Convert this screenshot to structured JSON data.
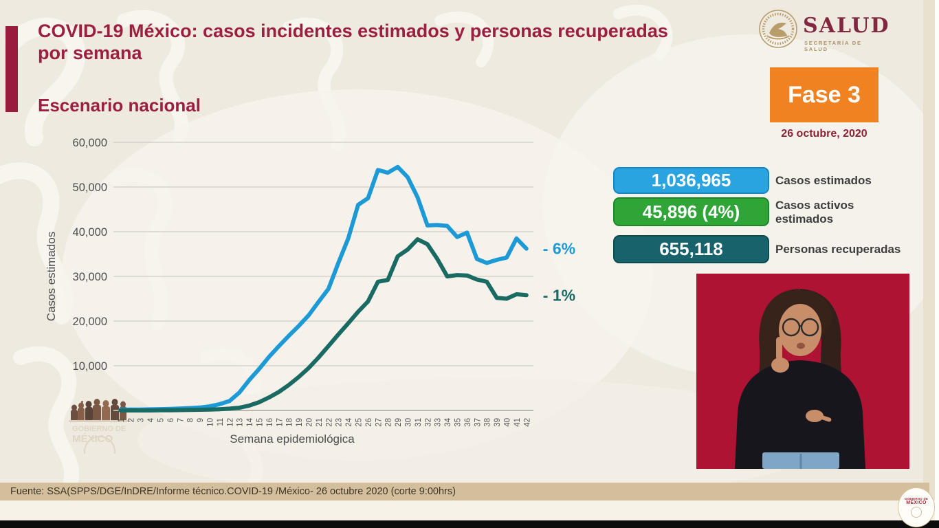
{
  "slide": {
    "title": "COVID-19 México: casos incidentes estimados y personas recuperadas por semana",
    "subtitle": "Escenario nacional",
    "accent_color": "#9a1c3c",
    "background_color": "#efeae0"
  },
  "logo": {
    "name": "SALUD",
    "subname": "SECRETARÍA DE SALUD"
  },
  "phase": {
    "label": "Fase 3",
    "date": "26 octubre, 2020",
    "box_color": "#f08222"
  },
  "stats": [
    {
      "value": "1,036,965",
      "label": "Casos estimados",
      "color": "#2aa3e1",
      "border": "#1486c2"
    },
    {
      "value": "45,896 (4%)",
      "label": "Casos activos estimados",
      "color": "#2fa437",
      "border": "#1d8727"
    },
    {
      "value": "655,118",
      "label": "Personas recuperadas",
      "color": "#17626b",
      "border": "#0e4a52"
    }
  ],
  "chart_data": {
    "type": "line",
    "title": "",
    "xlabel": "Semana epidemiológica",
    "ylabel": "Casos estimados",
    "grid": true,
    "legend_position": "none",
    "ylim": [
      0,
      60000
    ],
    "yticks": [
      "10,000",
      "20,000",
      "30,000",
      "40,000",
      "50,000",
      "60,000"
    ],
    "x": [
      1,
      2,
      3,
      4,
      5,
      6,
      7,
      8,
      9,
      10,
      11,
      12,
      13,
      14,
      15,
      16,
      17,
      18,
      19,
      20,
      21,
      22,
      23,
      24,
      25,
      26,
      27,
      28,
      29,
      30,
      31,
      32,
      33,
      34,
      35,
      36,
      37,
      38,
      39,
      40,
      41,
      42
    ],
    "series": [
      {
        "name": "Casos estimados",
        "data_name": "estimated-cases",
        "color": "#1d9ad6",
        "end_label": "- 6%",
        "values": [
          150,
          180,
          200,
          250,
          300,
          350,
          420,
          520,
          650,
          900,
          1400,
          2100,
          4000,
          6800,
          9300,
          12000,
          14400,
          16700,
          18900,
          21300,
          24300,
          27200,
          33000,
          38500,
          46000,
          47500,
          53800,
          53200,
          54500,
          52200,
          47700,
          41400,
          41500,
          41300,
          38800,
          39800,
          33900,
          33000,
          33700,
          34200,
          38500,
          36200
        ]
      },
      {
        "name": "Personas recuperadas",
        "data_name": "recovered-persons",
        "color": "#186a62",
        "end_label": "- 1%",
        "values": [
          0,
          0,
          0,
          0,
          30,
          50,
          80,
          120,
          160,
          200,
          280,
          400,
          600,
          1100,
          1850,
          2900,
          4150,
          5700,
          7500,
          9500,
          11850,
          14400,
          17000,
          19500,
          22100,
          24400,
          28800,
          29200,
          34500,
          36000,
          38300,
          37200,
          33900,
          30000,
          30300,
          30200,
          29300,
          28800,
          25200,
          25000,
          26000,
          25800
        ]
      }
    ]
  },
  "footer": {
    "source": "Fuente: SSA(SPPS/DGE/InDRE/Informe técnico.COVID-19 /México- 26 octubre 2020 (corte 9:00hrs)"
  },
  "gov_badge": {
    "line1": "GOBIERNO DE",
    "line2": "MÉXICO"
  },
  "interpreter": {
    "bg_color": "#ae1334"
  }
}
